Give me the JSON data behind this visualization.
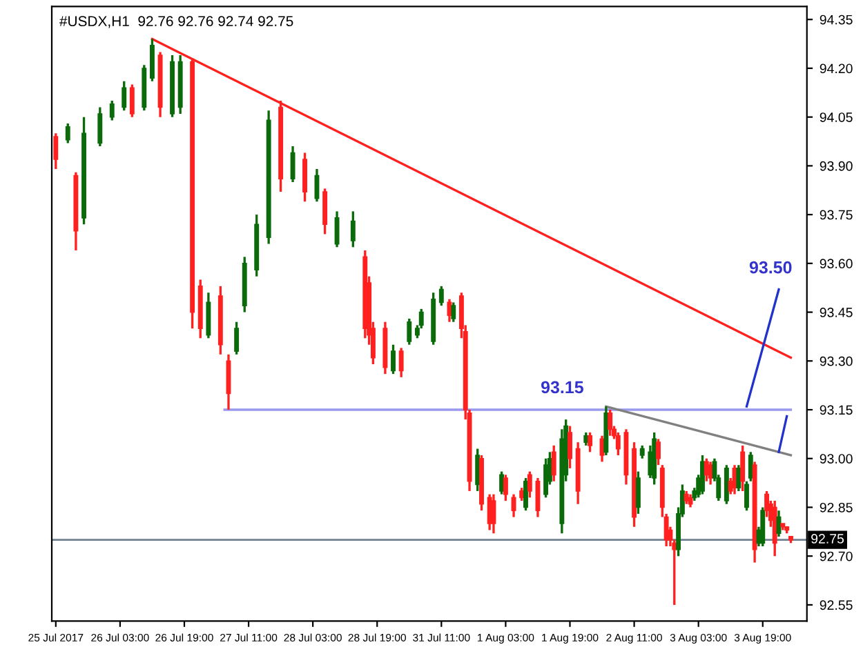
{
  "chart_data": {
    "type": "candlestick",
    "title": "#USDX,H1  92.76 92.76 92.74 92.75",
    "categories": [
      "25 Jul 2017",
      null,
      null,
      null,
      null,
      null,
      null,
      null,
      null,
      null,
      null,
      null,
      null,
      null,
      null,
      null,
      "26 Jul 03:00",
      null,
      null,
      null,
      null,
      null,
      null,
      null,
      null,
      null,
      null,
      null,
      null,
      null,
      null,
      null,
      "26 Jul 19:00",
      null,
      null,
      null,
      null,
      null,
      null,
      null,
      null,
      null,
      null,
      null,
      null,
      null,
      null,
      null,
      "27 Jul 11:00",
      null,
      null,
      null,
      null,
      null,
      null,
      null,
      null,
      null,
      null,
      null,
      null,
      null,
      null,
      null,
      "28 Jul 03:00",
      null,
      null,
      null,
      null,
      null,
      null,
      null,
      null,
      null,
      null,
      null,
      null,
      null,
      null,
      null,
      "28 Jul 19:00",
      null,
      null,
      null,
      null,
      null,
      null,
      null,
      null,
      null,
      null,
      null,
      null,
      null,
      null,
      null,
      "31 Jul 11:00",
      null,
      null,
      null,
      null,
      null,
      null,
      null,
      null,
      null,
      null,
      null,
      null,
      null,
      null,
      null,
      "1 Aug 03:00",
      null,
      null,
      null,
      null,
      null,
      null,
      null,
      null,
      null,
      null,
      null,
      null,
      null,
      null,
      null,
      "1 Aug 19:00",
      null,
      null,
      null,
      null,
      null,
      null,
      null,
      null,
      null,
      null,
      null,
      null,
      null,
      null,
      null,
      "2 Aug 11:00",
      null,
      null,
      null,
      null,
      null,
      null,
      null,
      null,
      null,
      null,
      null,
      null,
      null,
      null,
      null,
      "3 Aug 03:00",
      null,
      null,
      null,
      null,
      null,
      null,
      null,
      null,
      null,
      null,
      null,
      null,
      null,
      null,
      null,
      "3 Aug 19:00",
      null,
      null,
      null,
      null,
      null,
      null,
      null
    ],
    "ylim": [
      92.5,
      94.39
    ],
    "yticks": [
      {
        "value": 92.55,
        "label": "92.55"
      },
      {
        "value": 92.7,
        "label": "92.70"
      },
      {
        "value": 92.85,
        "label": "92.85"
      },
      {
        "value": 93.0,
        "label": "93.00"
      },
      {
        "value": 93.15,
        "label": "93.15"
      },
      {
        "value": 93.3,
        "label": "93.30"
      },
      {
        "value": 93.45,
        "label": "93.45"
      },
      {
        "value": 93.6,
        "label": "93.60"
      },
      {
        "value": 93.75,
        "label": "93.75"
      },
      {
        "value": 93.9,
        "label": "93.90"
      },
      {
        "value": 94.05,
        "label": "94.05"
      },
      {
        "value": 94.2,
        "label": "94.20"
      },
      {
        "value": 94.35,
        "label": "94.35"
      }
    ],
    "grid": false,
    "legend": false,
    "series": [
      {
        "ohlc": [
          [
            93.99,
            94.0,
            93.89,
            93.92
          ],
          null,
          null,
          [
            93.98,
            94.03,
            93.97,
            94.02
          ],
          null,
          [
            93.87,
            93.88,
            93.64,
            93.7
          ],
          null,
          [
            93.74,
            94.05,
            93.72,
            94.0
          ],
          null,
          null,
          null,
          [
            93.97,
            94.08,
            93.96,
            94.06
          ],
          null,
          null,
          [
            94.05,
            94.1,
            94.04,
            94.09
          ],
          null,
          null,
          [
            94.08,
            94.16,
            94.07,
            94.14
          ],
          null,
          [
            94.14,
            94.15,
            94.05,
            94.06
          ],
          null,
          null,
          [
            94.08,
            94.21,
            94.07,
            94.2
          ],
          null,
          [
            94.17,
            94.29,
            94.16,
            94.27
          ],
          null,
          [
            94.24,
            94.25,
            94.05,
            94.08
          ],
          null,
          null,
          [
            94.06,
            94.24,
            94.05,
            94.22
          ],
          null,
          [
            94.08,
            94.24,
            94.06,
            94.22
          ],
          null,
          null,
          [
            94.22,
            94.23,
            93.4,
            93.45
          ],
          null,
          [
            93.53,
            93.55,
            93.37,
            93.4
          ],
          null,
          [
            93.38,
            93.51,
            93.37,
            93.48
          ],
          null,
          null,
          [
            93.5,
            93.53,
            93.32,
            93.35
          ],
          null,
          [
            93.3,
            93.32,
            93.15,
            93.2
          ],
          null,
          [
            93.33,
            93.42,
            93.32,
            93.4
          ],
          null,
          [
            93.47,
            93.62,
            93.45,
            93.6
          ],
          null,
          null,
          [
            93.58,
            93.75,
            93.56,
            93.72
          ],
          null,
          null,
          [
            93.68,
            94.07,
            93.66,
            94.04
          ],
          null,
          null,
          [
            94.08,
            94.1,
            93.82,
            93.86
          ],
          null,
          null,
          [
            93.86,
            93.96,
            93.85,
            93.94
          ],
          null,
          null,
          [
            93.92,
            93.94,
            93.79,
            93.82
          ],
          null,
          null,
          [
            93.8,
            93.89,
            93.79,
            93.87
          ],
          null,
          [
            93.82,
            93.83,
            93.69,
            93.72
          ],
          null,
          null,
          [
            93.66,
            93.76,
            93.65,
            93.74
          ],
          null,
          null,
          null,
          [
            93.67,
            93.76,
            93.65,
            93.73
          ],
          null,
          null,
          [
            93.62,
            93.64,
            93.37,
            93.4
          ],
          [
            93.54,
            93.56,
            93.35,
            93.38
          ],
          [
            93.4,
            93.42,
            93.29,
            93.31
          ],
          null,
          null,
          [
            93.4,
            93.42,
            93.26,
            93.28
          ],
          null,
          [
            93.27,
            93.35,
            93.26,
            93.33
          ],
          null,
          [
            93.33,
            93.34,
            93.25,
            93.27
          ],
          null,
          [
            93.36,
            93.43,
            93.35,
            93.42
          ],
          null,
          [
            93.38,
            93.41,
            93.37,
            93.4
          ],
          [
            93.41,
            93.46,
            93.4,
            93.45
          ],
          null,
          null,
          [
            93.36,
            93.51,
            93.35,
            93.49
          ],
          null,
          [
            93.48,
            93.53,
            93.47,
            93.52
          ],
          null,
          [
            93.48,
            93.49,
            93.42,
            93.44
          ],
          [
            93.43,
            93.48,
            93.42,
            93.47
          ],
          null,
          [
            93.5,
            93.51,
            93.37,
            93.4
          ],
          [
            93.39,
            93.41,
            93.12,
            93.15
          ],
          [
            93.14,
            93.15,
            92.9,
            92.93
          ],
          null,
          [
            92.92,
            93.03,
            92.9,
            93.01
          ],
          [
            93.0,
            93.01,
            92.84,
            92.86
          ],
          null,
          [
            92.88,
            92.89,
            92.78,
            92.8
          ],
          [
            92.87,
            92.89,
            92.77,
            92.8
          ],
          null,
          [
            92.9,
            92.96,
            92.89,
            92.95
          ],
          [
            92.94,
            92.95,
            92.87,
            92.89
          ],
          null,
          [
            92.88,
            92.89,
            92.82,
            92.84
          ],
          null,
          [
            92.9,
            92.91,
            92.87,
            92.88
          ],
          [
            92.85,
            92.94,
            92.84,
            92.93
          ],
          [
            92.95,
            92.96,
            92.88,
            92.9
          ],
          null,
          [
            92.93,
            92.94,
            92.82,
            92.84
          ],
          null,
          [
            92.89,
            93.0,
            92.88,
            92.98
          ],
          [
            92.93,
            93.02,
            92.92,
            93.0
          ],
          [
            93.02,
            93.04,
            92.93,
            92.95
          ],
          null,
          [
            92.8,
            93.09,
            92.77,
            93.06
          ],
          [
            92.95,
            93.12,
            92.93,
            93.1
          ],
          [
            93.08,
            93.1,
            92.97,
            93.0
          ],
          null,
          [
            93.03,
            93.05,
            92.86,
            92.9
          ],
          null,
          [
            93.05,
            93.08,
            93.04,
            93.07
          ],
          [
            93.07,
            93.08,
            93.02,
            93.04
          ],
          null,
          null,
          [
            93.06,
            93.07,
            92.99,
            93.01
          ],
          [
            93.02,
            93.16,
            93.01,
            93.14
          ],
          [
            93.14,
            93.15,
            93.07,
            93.09
          ],
          [
            93.09,
            93.1,
            93.06,
            93.07
          ],
          [
            93.07,
            93.08,
            93.01,
            93.03
          ],
          null,
          [
            93.08,
            93.09,
            92.92,
            92.95
          ],
          null,
          [
            93.03,
            93.05,
            92.79,
            92.82
          ],
          [
            92.85,
            92.96,
            92.83,
            92.94
          ],
          [
            93.01,
            93.04,
            93.0,
            93.03
          ],
          null,
          [
            92.95,
            93.04,
            92.94,
            93.02
          ],
          [
            92.94,
            93.08,
            92.92,
            93.06
          ],
          [
            93.05,
            93.06,
            92.98,
            93.0
          ],
          [
            92.97,
            92.98,
            92.82,
            92.85
          ],
          [
            92.82,
            92.83,
            92.73,
            92.75
          ],
          [
            92.78,
            92.79,
            92.73,
            92.75
          ],
          [
            92.74,
            92.75,
            92.55,
            92.72
          ],
          [
            92.72,
            92.85,
            92.7,
            92.83
          ],
          [
            92.83,
            92.92,
            92.82,
            92.9
          ],
          [
            92.89,
            92.9,
            92.86,
            92.87
          ],
          [
            92.88,
            92.89,
            92.85,
            92.86
          ],
          [
            92.88,
            92.91,
            92.87,
            92.9
          ],
          [
            92.89,
            92.95,
            92.88,
            92.94
          ],
          [
            92.9,
            93.01,
            92.89,
            92.99
          ],
          [
            92.99,
            93.0,
            92.93,
            92.95
          ],
          [
            92.98,
            92.99,
            92.92,
            92.94
          ],
          [
            92.94,
            93.0,
            92.93,
            92.99
          ],
          [
            92.88,
            92.95,
            92.87,
            92.94
          ],
          null,
          [
            92.87,
            92.98,
            92.86,
            92.97
          ],
          [
            92.93,
            92.94,
            92.89,
            92.9
          ],
          [
            92.97,
            92.98,
            92.89,
            92.91
          ],
          [
            92.91,
            92.98,
            92.9,
            92.97
          ],
          [
            93.02,
            93.04,
            92.9,
            92.93
          ],
          [
            92.85,
            92.93,
            92.84,
            92.92
          ],
          [
            92.94,
            93.02,
            92.93,
            93.01
          ],
          [
            92.98,
            92.99,
            92.68,
            92.72
          ],
          [
            92.74,
            92.79,
            92.73,
            92.78
          ],
          [
            92.74,
            92.85,
            92.73,
            92.84
          ],
          [
            92.89,
            92.9,
            92.82,
            92.84
          ],
          [
            92.86,
            92.87,
            92.79,
            92.81
          ],
          [
            92.85,
            92.87,
            92.7,
            92.74
          ],
          [
            92.77,
            92.84,
            92.76,
            92.82
          ],
          [
            92.8,
            92.8,
            92.78,
            92.79
          ],
          [
            92.79,
            92.79,
            92.77,
            92.78
          ],
          [
            92.76,
            92.76,
            92.74,
            92.75
          ]
        ],
        "colors": [
          "#ff2020",
          null,
          null,
          "#0b6b0b",
          null,
          "#ff2020",
          null,
          "#0b6b0b",
          null,
          null,
          null,
          "#0b6b0b",
          null,
          null,
          "#0b6b0b",
          null,
          null,
          "#0b6b0b",
          null,
          "#ff2020",
          null,
          null,
          "#0b6b0b",
          null,
          "#0b6b0b",
          null,
          "#ff2020",
          null,
          null,
          "#0b6b0b",
          null,
          "#0b6b0b",
          null,
          null,
          "#ff2020",
          null,
          "#ff2020",
          null,
          "#0b6b0b",
          null,
          null,
          "#ff2020",
          null,
          "#ff2020",
          null,
          "#0b6b0b",
          null,
          "#0b6b0b",
          null,
          null,
          "#0b6b0b",
          null,
          null,
          "#0b6b0b",
          null,
          null,
          "#ff2020",
          null,
          null,
          "#0b6b0b",
          null,
          null,
          "#ff2020",
          null,
          null,
          "#0b6b0b",
          null,
          "#ff2020",
          null,
          null,
          "#0b6b0b",
          null,
          null,
          null,
          "#0b6b0b",
          null,
          null,
          "#ff2020",
          "#ff2020",
          "#ff2020",
          null,
          null,
          "#ff2020",
          null,
          "#0b6b0b",
          null,
          "#ff2020",
          null,
          "#0b6b0b",
          null,
          "#0b6b0b",
          "#0b6b0b",
          null,
          null,
          "#0b6b0b",
          null,
          "#0b6b0b",
          null,
          "#ff2020",
          "#0b6b0b",
          null,
          "#ff2020",
          "#ff2020",
          "#ff2020",
          null,
          "#0b6b0b",
          "#ff2020",
          null,
          "#ff2020",
          "#ff2020",
          null,
          "#0b6b0b",
          "#ff2020",
          null,
          "#ff2020",
          null,
          "#ff2020",
          "#0b6b0b",
          "#ff2020",
          null,
          "#ff2020",
          null,
          "#0b6b0b",
          "#0b6b0b",
          "#ff2020",
          null,
          "#0b6b0b",
          "#0b6b0b",
          "#ff2020",
          null,
          "#ff2020",
          null,
          "#0b6b0b",
          "#ff2020",
          null,
          null,
          "#ff2020",
          "#0b6b0b",
          "#ff2020",
          "#ff2020",
          "#ff2020",
          null,
          "#ff2020",
          null,
          "#ff2020",
          "#0b6b0b",
          "#0b6b0b",
          null,
          "#0b6b0b",
          "#0b6b0b",
          "#ff2020",
          "#ff2020",
          "#ff2020",
          "#ff2020",
          "#ff2020",
          "#0b6b0b",
          "#0b6b0b",
          "#ff2020",
          "#ff2020",
          "#0b6b0b",
          "#0b6b0b",
          "#0b6b0b",
          "#ff2020",
          "#ff2020",
          "#0b6b0b",
          "#0b6b0b",
          null,
          "#0b6b0b",
          "#ff2020",
          "#ff2020",
          "#0b6b0b",
          "#ff2020",
          "#0b6b0b",
          "#0b6b0b",
          "#ff2020",
          "#0b6b0b",
          "#0b6b0b",
          "#ff2020",
          "#ff2020",
          "#ff2020",
          "#0b6b0b",
          "#ff2020",
          "#ff2020",
          "#ff2020"
        ]
      },
      {
        "type": "line",
        "color": "#ff2020",
        "values": [
          null,
          null,
          null,
          null,
          null,
          null,
          null,
          null,
          null,
          null,
          null,
          null,
          null,
          null,
          null,
          null,
          null,
          null,
          null,
          null,
          null,
          null,
          null,
          null,
          94.29,
          null,
          null,
          null,
          null,
          null,
          null,
          null,
          null,
          null,
          null,
          null,
          null,
          null,
          null,
          null,
          null,
          null,
          null,
          null,
          null,
          null,
          null,
          null,
          null,
          null,
          null,
          null,
          null,
          null,
          null,
          null,
          null,
          null,
          null,
          null,
          null,
          null,
          null,
          null,
          null,
          null,
          null,
          null,
          null,
          null,
          null,
          null,
          null,
          null,
          null,
          null,
          null,
          null,
          null,
          null,
          null,
          null,
          null,
          null,
          null,
          null,
          null,
          null,
          null,
          null,
          null,
          null,
          null,
          null,
          null,
          null,
          null,
          null,
          null,
          null,
          null,
          null,
          null,
          null,
          null,
          null,
          null,
          null,
          null,
          null,
          null,
          null,
          null,
          null,
          null,
          null,
          null,
          null,
          null,
          null,
          null,
          null,
          null,
          null,
          null,
          null,
          null,
          null,
          null,
          null,
          null,
          null,
          null,
          null,
          null,
          null,
          null,
          null,
          null,
          null,
          null,
          null,
          null,
          null,
          null,
          null,
          null,
          null,
          null,
          null,
          null,
          null,
          null,
          null,
          null,
          null,
          null,
          null,
          null,
          null,
          null,
          null,
          null,
          null,
          null,
          null,
          null,
          null,
          null,
          null,
          null,
          null,
          null,
          null,
          null,
          null,
          null,
          null,
          null,
          null,
          null,
          null,
          null,
          93.31
        ]
      },
      {
        "type": "line",
        "color": "#9999ee",
        "values": [
          null,
          null,
          null,
          null,
          null,
          null,
          null,
          null,
          null,
          null,
          null,
          null,
          null,
          null,
          null,
          null,
          null,
          null,
          null,
          null,
          null,
          null,
          null,
          null,
          null,
          null,
          null,
          null,
          null,
          null,
          null,
          null,
          null,
          null,
          null,
          null,
          null,
          null,
          null,
          null,
          null,
          null,
          93.15,
          null,
          null,
          null,
          null,
          null,
          null,
          null,
          null,
          null,
          null,
          null,
          null,
          null,
          null,
          null,
          null,
          null,
          null,
          null,
          null,
          null,
          null,
          null,
          null,
          null,
          null,
          null,
          null,
          null,
          null,
          null,
          null,
          null,
          null,
          null,
          null,
          null,
          null,
          null,
          null,
          null,
          null,
          null,
          null,
          null,
          null,
          null,
          null,
          null,
          null,
          null,
          null,
          null,
          null,
          null,
          null,
          null,
          null,
          null,
          null,
          null,
          null,
          null,
          null,
          null,
          null,
          null,
          null,
          null,
          null,
          null,
          null,
          null,
          null,
          null,
          null,
          null,
          null,
          null,
          null,
          null,
          null,
          null,
          null,
          null,
          null,
          null,
          null,
          null,
          null,
          null,
          null,
          null,
          null,
          null,
          null,
          null,
          null,
          null,
          null,
          null,
          null,
          null,
          null,
          null,
          null,
          null,
          null,
          null,
          null,
          null,
          null,
          null,
          null,
          null,
          null,
          null,
          null,
          null,
          null,
          null,
          null,
          null,
          null,
          null,
          null,
          null,
          null,
          null,
          null,
          null,
          null,
          null,
          null,
          null,
          null,
          null,
          null,
          null,
          null,
          93.15
        ]
      },
      {
        "type": "line",
        "color": "#808080",
        "values": [
          null,
          null,
          null,
          null,
          null,
          null,
          null,
          null,
          null,
          null,
          null,
          null,
          null,
          null,
          null,
          null,
          null,
          null,
          null,
          null,
          null,
          null,
          null,
          null,
          null,
          null,
          null,
          null,
          null,
          null,
          null,
          null,
          null,
          null,
          null,
          null,
          null,
          null,
          null,
          null,
          null,
          null,
          null,
          null,
          null,
          null,
          null,
          null,
          null,
          null,
          null,
          null,
          null,
          null,
          null,
          null,
          null,
          null,
          null,
          null,
          null,
          null,
          null,
          null,
          null,
          null,
          null,
          null,
          null,
          null,
          null,
          null,
          null,
          null,
          null,
          null,
          null,
          null,
          null,
          null,
          null,
          null,
          null,
          null,
          null,
          null,
          null,
          null,
          null,
          null,
          null,
          null,
          null,
          null,
          null,
          null,
          null,
          null,
          null,
          null,
          null,
          null,
          null,
          null,
          null,
          null,
          null,
          null,
          null,
          null,
          null,
          null,
          null,
          null,
          null,
          null,
          null,
          null,
          null,
          null,
          null,
          null,
          null,
          null,
          null,
          null,
          null,
          null,
          null,
          null,
          null,
          null,
          null,
          null,
          null,
          null,
          null,
          93.16,
          null,
          null,
          null,
          null,
          null,
          null,
          null,
          null,
          null,
          null,
          null,
          null,
          null,
          null,
          null,
          null,
          null,
          null,
          null,
          null,
          null,
          null,
          null,
          null,
          null,
          null,
          null,
          null,
          null,
          null,
          null,
          null,
          null,
          null,
          null,
          null,
          null,
          null,
          null,
          null,
          null,
          null,
          null,
          null,
          null,
          93.01
        ]
      },
      {
        "type": "line",
        "color": "#2233cc",
        "values": [
          null,
          null,
          null,
          null,
          null,
          null,
          null,
          null,
          null,
          null,
          null,
          null,
          null,
          null,
          null,
          null,
          null,
          null,
          null,
          null,
          null,
          null,
          null,
          null,
          null,
          null,
          null,
          null,
          null,
          null,
          null,
          null,
          null,
          null,
          null,
          null,
          null,
          null,
          null,
          null,
          null,
          null,
          null,
          null,
          null,
          null,
          null,
          null,
          null,
          null,
          null,
          null,
          null,
          null,
          null,
          null,
          null,
          null,
          null,
          null,
          null,
          null,
          null,
          null,
          null,
          null,
          null,
          null,
          null,
          null,
          null,
          null,
          null,
          null,
          null,
          null,
          null,
          null,
          null,
          null,
          null,
          null,
          null,
          null,
          null,
          null,
          null,
          null,
          null,
          null,
          null,
          null,
          null,
          null,
          null,
          null,
          null,
          null,
          null,
          null,
          null,
          null,
          null,
          null,
          null,
          null,
          null,
          null,
          null,
          null,
          null,
          null,
          null,
          null,
          null,
          null,
          null,
          null,
          null,
          null,
          null,
          null,
          null,
          null,
          null,
          null,
          null,
          null,
          null,
          null,
          null,
          null,
          null,
          null,
          null,
          null,
          null,
          null,
          null,
          null,
          null,
          null,
          null,
          null,
          null,
          null,
          null,
          null,
          null,
          null,
          null,
          null,
          null,
          null,
          null,
          null,
          null,
          null,
          null,
          null,
          null,
          null,
          null,
          null,
          null,
          null,
          null,
          null,
          null,
          null,
          null,
          null,
          93.16,
          null,
          null,
          null,
          null,
          null,
          null,
          null,
          93.52,
          null,
          null,
          null
        ]
      },
      {
        "type": "line",
        "color": "#2233cc",
        "values": [
          null,
          null,
          null,
          null,
          null,
          null,
          null,
          null,
          null,
          null,
          null,
          null,
          null,
          null,
          null,
          null,
          null,
          null,
          null,
          null,
          null,
          null,
          null,
          null,
          null,
          null,
          null,
          null,
          null,
          null,
          null,
          null,
          null,
          null,
          null,
          null,
          null,
          null,
          null,
          null,
          null,
          null,
          null,
          null,
          null,
          null,
          null,
          null,
          null,
          null,
          null,
          null,
          null,
          null,
          null,
          null,
          null,
          null,
          null,
          null,
          null,
          null,
          null,
          null,
          null,
          null,
          null,
          null,
          null,
          null,
          null,
          null,
          null,
          null,
          null,
          null,
          null,
          null,
          null,
          null,
          null,
          null,
          null,
          null,
          null,
          null,
          null,
          null,
          null,
          null,
          null,
          null,
          null,
          null,
          null,
          null,
          null,
          null,
          null,
          null,
          null,
          null,
          null,
          null,
          null,
          null,
          null,
          null,
          null,
          null,
          null,
          null,
          null,
          null,
          null,
          null,
          null,
          null,
          null,
          null,
          null,
          null,
          null,
          null,
          null,
          null,
          null,
          null,
          null,
          null,
          null,
          null,
          null,
          null,
          null,
          null,
          null,
          null,
          null,
          null,
          null,
          null,
          null,
          null,
          null,
          null,
          null,
          null,
          null,
          null,
          null,
          null,
          null,
          null,
          null,
          null,
          null,
          null,
          null,
          null,
          null,
          null,
          null,
          null,
          null,
          null,
          null,
          null,
          null,
          null,
          null,
          null,
          null,
          null,
          null,
          null,
          null,
          null,
          null,
          null,
          93.02,
          null,
          93.13,
          null
        ]
      }
    ],
    "ref_lines": [
      {
        "axis": "y",
        "value": 92.75,
        "label": "92.75",
        "color": "#708090"
      }
    ],
    "annotations": [
      "93.15",
      "93.50"
    ]
  }
}
